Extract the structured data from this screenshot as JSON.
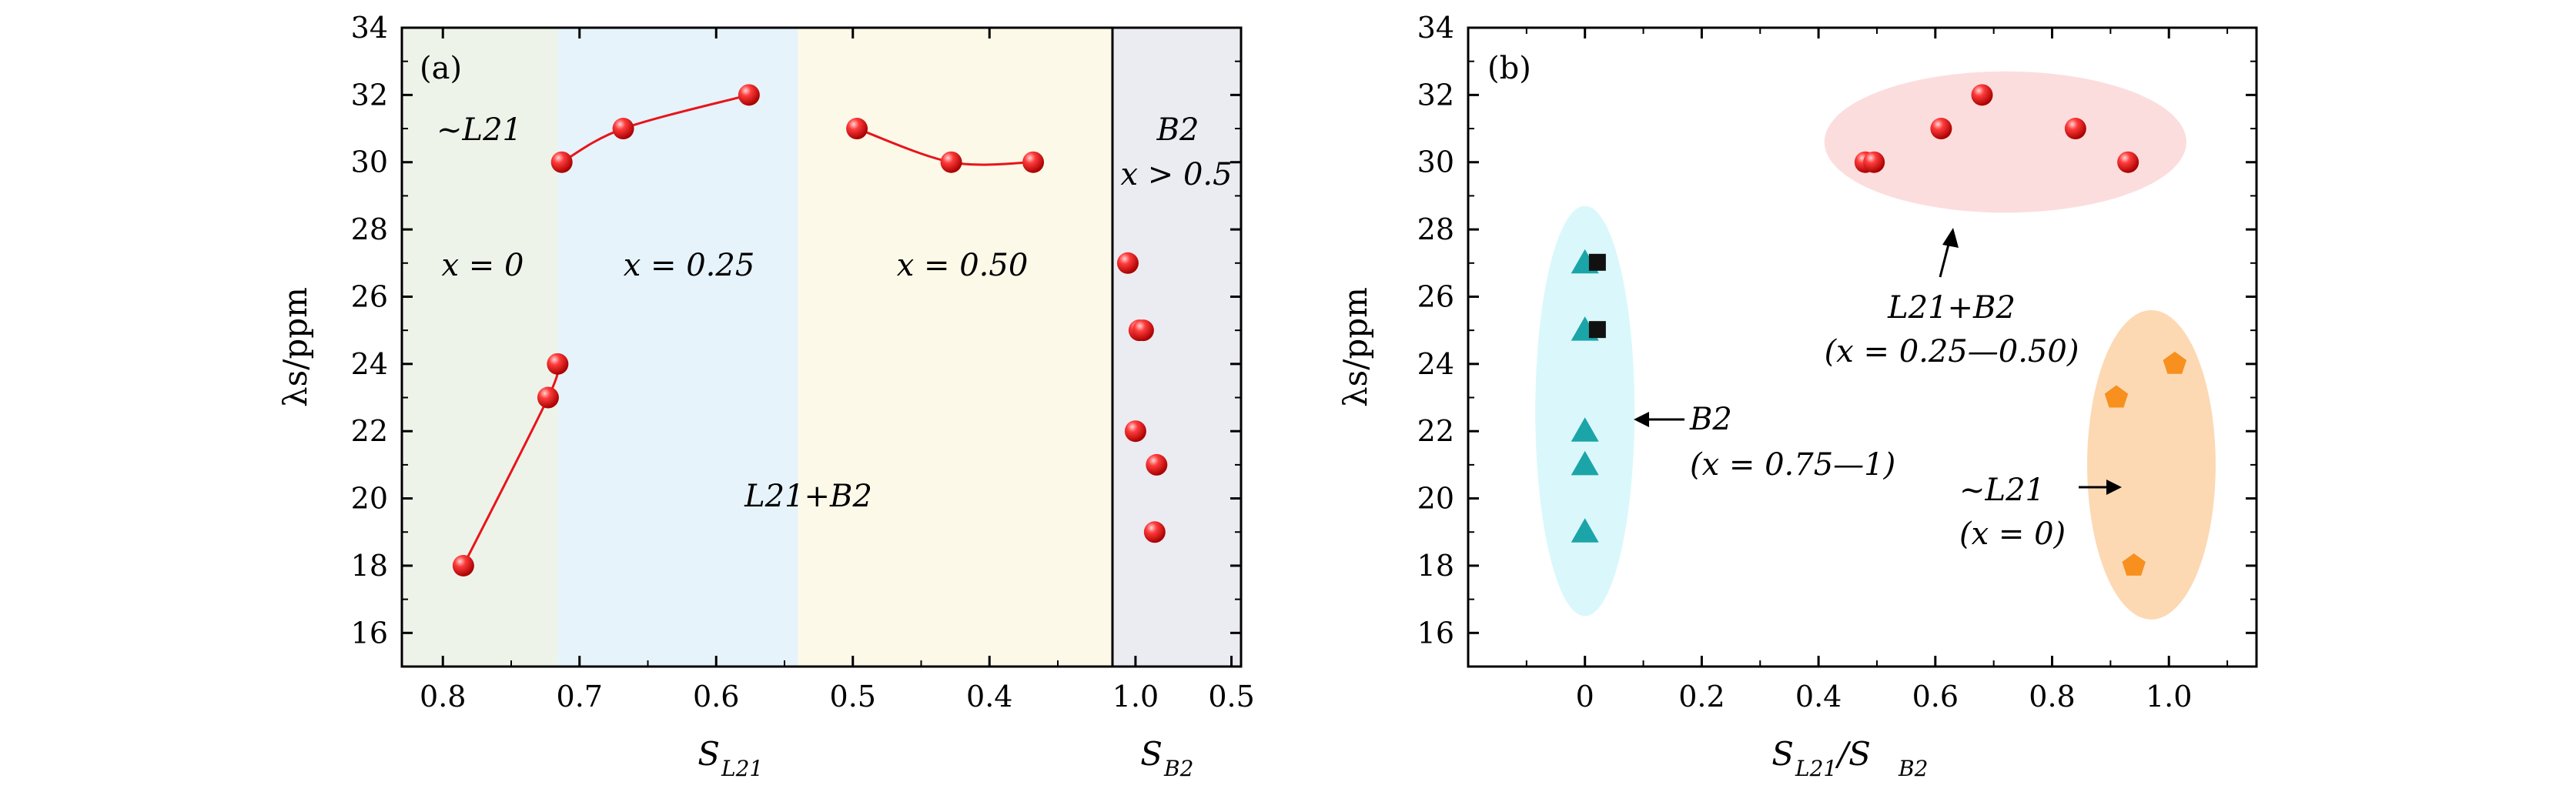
{
  "figure": {
    "panel_a": {
      "label": "(a)",
      "ylabel": "λs/ppm",
      "xlabel_left": {
        "main": "S",
        "sub": "L21"
      },
      "xlabel_right": {
        "main": "S",
        "sub": "B2"
      },
      "phase_label": "~L21",
      "regions": [
        {
          "label": "x = 0",
          "color": "#eef3ea"
        },
        {
          "label": "x = 0.25",
          "color": "#e6f3fb"
        },
        {
          "label": "x = 0.50",
          "color": "#fcf9e8"
        },
        {
          "label": "B2",
          "sublabel": "x > 0.5",
          "color": "#ebebf2"
        }
      ],
      "mixed_label": "L21+B2"
    },
    "panel_b": {
      "label": "(b)",
      "ylabel": "λs/ppm",
      "xlabel": {
        "main": "S",
        "sub": "L21",
        "tail": "/S",
        "sub2": "B2"
      },
      "groups": [
        {
          "label": "L21+B2",
          "sublabel": "(x = 0.25—0.50)",
          "color": "#fbd7d8"
        },
        {
          "label": "B2",
          "sublabel": "(x = 0.75—1)",
          "color": "#d3f7fb"
        },
        {
          "label": "~L21",
          "sublabel": "(x = 0)",
          "color": "#fbd2a6"
        }
      ]
    }
  },
  "chart_data": [
    {
      "type": "scatter",
      "panel": "(a)",
      "ylabel": "λs/ppm",
      "ylim": [
        15,
        34
      ],
      "yticks": [
        16,
        18,
        20,
        22,
        24,
        26,
        28,
        30,
        32,
        34
      ],
      "left_axis": {
        "label": "S_L21",
        "xlim": [
          0.83,
          0.31
        ],
        "ticks": [
          0.8,
          0.7,
          0.6,
          0.5,
          0.4
        ],
        "tick_labels": [
          "0.8",
          "0.7",
          "0.6",
          "0.5",
          "0.4"
        ]
      },
      "right_axis": {
        "label": "S_B2",
        "xlim": [
          1.12,
          0.45
        ],
        "ticks": [
          1.0,
          0.5
        ],
        "tick_labels": [
          "1.0",
          "0.5"
        ]
      },
      "region_bounds_S_L21": [
        0.716,
        0.54
      ],
      "series": [
        {
          "group": "x = 0",
          "x": [
            0.785,
            0.723,
            0.716
          ],
          "y": [
            18,
            23,
            24
          ],
          "line": true,
          "color": "#e8141b"
        },
        {
          "group": "x = 0.25",
          "x": [
            0.713,
            0.668,
            0.576
          ],
          "y": [
            30,
            31,
            32
          ],
          "line": true,
          "color": "#e8141b"
        },
        {
          "group": "x = 0.50",
          "x": [
            0.497,
            0.428,
            0.368
          ],
          "y": [
            31,
            30,
            30
          ],
          "line": true,
          "color": "#e8141b"
        },
        {
          "group": "B2",
          "axis": "S_B2",
          "x": [
            1.0,
            0.98,
            0.96,
            1.04,
            0.89,
            0.9
          ],
          "y": [
            22,
            25,
            25,
            27,
            21,
            19
          ],
          "line": false,
          "color": "#e8141b"
        }
      ],
      "grid": false
    },
    {
      "type": "scatter",
      "panel": "(b)",
      "xlabel": "S_L21/S_B2",
      "ylabel": "λs/ppm",
      "xlim": [
        -0.2,
        1.15
      ],
      "ylim": [
        15,
        34
      ],
      "xticks": [
        0,
        0.2,
        0.4,
        0.6,
        0.8,
        1.0
      ],
      "xtick_labels": [
        "0",
        "0.2",
        "0.4",
        "0.6",
        "0.8",
        "1.0"
      ],
      "yticks": [
        16,
        18,
        20,
        22,
        24,
        26,
        28,
        30,
        32,
        34
      ],
      "series": [
        {
          "marker": "circle",
          "color": "#e8141b",
          "x": [
            0.48,
            0.495,
            0.61,
            0.68,
            0.84,
            0.93
          ],
          "y": [
            30,
            30,
            31,
            32,
            31,
            30
          ]
        },
        {
          "marker": "triangle",
          "color": "#1ba5a8",
          "x": [
            0,
            0,
            0,
            0,
            0
          ],
          "y": [
            27,
            25,
            22,
            21,
            19
          ]
        },
        {
          "marker": "square",
          "color": "#111111",
          "x": [
            0.02,
            0.02
          ],
          "y": [
            27,
            25
          ]
        },
        {
          "marker": "pentagon",
          "color": "#f7901e",
          "x": [
            0.91,
            1.01,
            0.94
          ],
          "y": [
            23,
            24,
            18
          ]
        }
      ],
      "grid": false
    }
  ]
}
